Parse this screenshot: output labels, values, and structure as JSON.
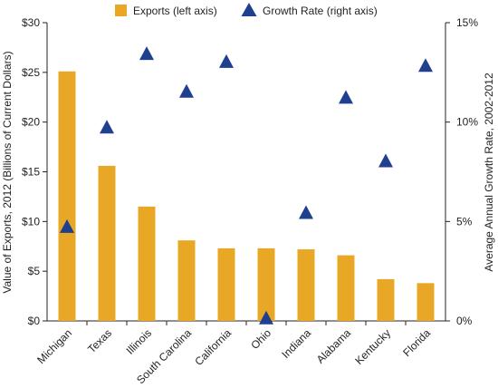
{
  "chart_data": {
    "type": "bar",
    "categories": [
      "Michigan",
      "Texas",
      "Illinois",
      "South Carolina",
      "California",
      "Ohio",
      "Indiana",
      "Alabama",
      "Kentucky",
      "Florida"
    ],
    "series": [
      {
        "name": "Exports (left axis)",
        "type": "bar",
        "axis": "left",
        "color": "#e8a825",
        "values": [
          25.1,
          15.6,
          11.5,
          8.1,
          7.3,
          7.3,
          7.2,
          6.6,
          4.2,
          3.8
        ]
      },
      {
        "name": "Growth Rate (right axis)",
        "type": "scatter",
        "marker": "triangle",
        "axis": "right",
        "color": "#1f3f8f",
        "values": [
          4.7,
          9.7,
          13.4,
          11.5,
          13.0,
          0.1,
          5.4,
          11.2,
          8.0,
          12.8
        ]
      }
    ],
    "ylabel": "Value of Exports, 2012 (Billions of Current Dollars)",
    "y2label": "Average Annual Growth Rate, 2002-2012",
    "ylim": [
      0,
      30
    ],
    "y2lim": [
      0,
      15
    ],
    "yticks": [
      "$0",
      "$5",
      "$10",
      "$15",
      "$20",
      "$25",
      "$30"
    ],
    "y2ticks": [
      "0%",
      "5%",
      "10%",
      "15%"
    ],
    "legend_position": "top",
    "grid": false
  }
}
